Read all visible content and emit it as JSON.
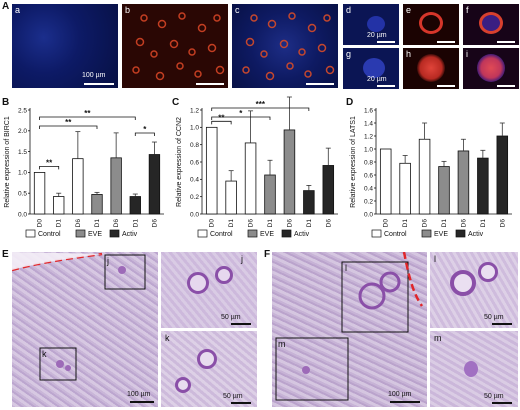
{
  "panel_labels": {
    "A": "A",
    "B": "B",
    "C": "C",
    "D": "D",
    "E": "E",
    "F": "F"
  },
  "fluor_panels": {
    "a": "a",
    "b": "b",
    "c": "c",
    "d": "d",
    "e": "e",
    "f": "f",
    "g": "g",
    "h": "h",
    "i": "i",
    "scale_main": "100 µm",
    "scale_small_1": "20 µm",
    "scale_small_2": "20 µm"
  },
  "histology": {
    "E": {
      "inset_j": "j",
      "inset_k": "k",
      "scale_main": "100 µm",
      "scale_j": "50 µm",
      "scale_k": "50 µm"
    },
    "F": {
      "inset_l": "l",
      "inset_m": "m",
      "scale_main": "100 µm",
      "scale_l": "50 µm",
      "scale_m": "50 µm"
    }
  },
  "legend": {
    "control": "Control",
    "eve": "EVE",
    "activ": "Activ"
  },
  "colors": {
    "control": "#ffffff",
    "eve": "#8c8c8c",
    "activ": "#262626",
    "error": "#333333"
  },
  "chart_data": [
    {
      "type": "bar",
      "ylabel": "Relative expression of BIRC1",
      "categories": [
        "D0",
        "D1",
        "D6",
        "D1",
        "D6",
        "D1",
        "D6"
      ],
      "groups": [
        "Control",
        "Control",
        "Control",
        "EVE",
        "EVE",
        "Activ",
        "Activ"
      ],
      "values": [
        1.0,
        0.42,
        1.33,
        0.47,
        1.35,
        0.42,
        1.43
      ],
      "errors": [
        0,
        0.08,
        0.65,
        0.05,
        0.6,
        0.06,
        0.3
      ],
      "ylim": [
        0,
        2.5
      ],
      "yticks": [
        "0.0",
        "0.5",
        "1.0",
        "1.5",
        "2.0",
        "2.5"
      ],
      "significance": [
        {
          "from": 0,
          "to": 1,
          "label": "**"
        },
        {
          "from": 0,
          "to": 3,
          "label": "**"
        },
        {
          "from": 0,
          "to": 5,
          "label": "**"
        },
        {
          "from": 5,
          "to": 6,
          "label": "*"
        }
      ]
    },
    {
      "type": "bar",
      "ylabel": "Relative expression of CCN2",
      "categories": [
        "D0",
        "D1",
        "D6",
        "D1",
        "D6",
        "D1",
        "D6"
      ],
      "groups": [
        "Control",
        "Control",
        "Control",
        "EVE",
        "EVE",
        "Activ",
        "Activ"
      ],
      "values": [
        1.0,
        0.38,
        0.82,
        0.45,
        0.97,
        0.27,
        0.56
      ],
      "errors": [
        0,
        0.12,
        0.37,
        0.17,
        0.38,
        0.06,
        0.2
      ],
      "ylim": [
        0,
        1.2
      ],
      "yticks": [
        "0.0",
        "0.2",
        "0.4",
        "0.6",
        "0.8",
        "1.0",
        "1.2"
      ],
      "significance": [
        {
          "from": 0,
          "to": 1,
          "label": "**"
        },
        {
          "from": 0,
          "to": 3,
          "label": "*"
        },
        {
          "from": 0,
          "to": 5,
          "label": "***"
        }
      ]
    },
    {
      "type": "bar",
      "ylabel": "Relative expression of LATS1",
      "categories": [
        "D0",
        "D1",
        "D6",
        "D1",
        "D6",
        "D1",
        "D6"
      ],
      "groups": [
        "Control",
        "Control",
        "Control",
        "EVE",
        "EVE",
        "Activ",
        "Activ"
      ],
      "values": [
        1.0,
        0.78,
        1.15,
        0.73,
        0.97,
        0.86,
        1.2
      ],
      "errors": [
        0,
        0.12,
        0.25,
        0.08,
        0.18,
        0.12,
        0.2
      ],
      "ylim": [
        0,
        1.6
      ],
      "yticks": [
        "0.0",
        "0.2",
        "0.4",
        "0.6",
        "0.8",
        "1.0",
        "1.2",
        "1.4",
        "1.6"
      ],
      "significance": []
    }
  ]
}
